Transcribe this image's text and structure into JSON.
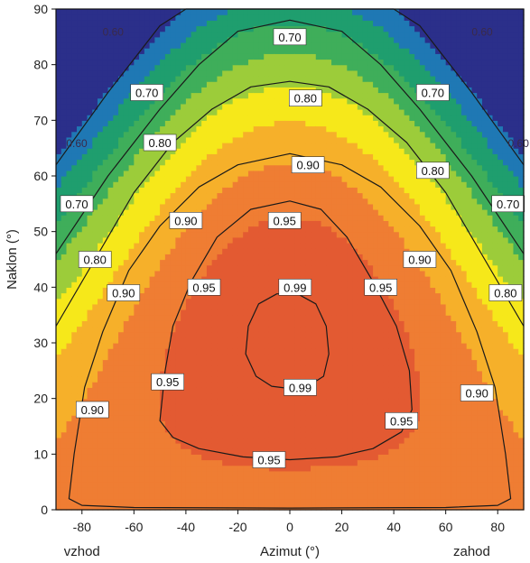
{
  "chart_data": {
    "type": "heatmap",
    "xlabel": "Azimut (°)",
    "ylabel": "Naklon (°)",
    "xlim": [
      -90,
      90
    ],
    "ylim": [
      0,
      90
    ],
    "x_ticks": [
      -80,
      -60,
      -40,
      -20,
      0,
      20,
      40,
      60,
      80
    ],
    "y_ticks": [
      0,
      10,
      20,
      30,
      40,
      50,
      60,
      70,
      80,
      90
    ],
    "x_side_labels": {
      "left": "vzhod",
      "right": "zahod"
    },
    "colors": {
      "levels": [
        0.4,
        0.55,
        0.6,
        0.65,
        0.7,
        0.75,
        0.8,
        0.85,
        0.9,
        0.95,
        1.0
      ],
      "palette": [
        "#2b2f8a",
        "#2b2f8a",
        "#1f78b4",
        "#1f9e6e",
        "#3fae5a",
        "#9ccc3a",
        "#f6e81a",
        "#f6b02a",
        "#ef7d33",
        "#e35a32",
        "#d23a2f"
      ]
    },
    "contour_levels": [
      0.6,
      0.7,
      0.8,
      0.9,
      0.95,
      0.99
    ],
    "contours": [
      {
        "level": 0.6,
        "points": [
          [
            -90,
            62
          ],
          [
            -70,
            75
          ],
          [
            -50,
            87
          ],
          [
            -40,
            90
          ],
          [
            40,
            90
          ],
          [
            50,
            87
          ],
          [
            70,
            75
          ],
          [
            90,
            62
          ]
        ]
      },
      {
        "level": 0.7,
        "points": [
          [
            -90,
            46
          ],
          [
            -70,
            60
          ],
          [
            -50,
            72
          ],
          [
            -35,
            80
          ],
          [
            -20,
            86
          ],
          [
            0,
            88
          ],
          [
            20,
            86
          ],
          [
            35,
            80
          ],
          [
            50,
            72
          ],
          [
            70,
            60
          ],
          [
            90,
            46
          ]
        ]
      },
      {
        "level": 0.8,
        "points": [
          [
            -90,
            33
          ],
          [
            -75,
            45
          ],
          [
            -60,
            57
          ],
          [
            -45,
            66
          ],
          [
            -30,
            72
          ],
          [
            -15,
            76
          ],
          [
            0,
            77
          ],
          [
            15,
            76
          ],
          [
            30,
            72
          ],
          [
            45,
            66
          ],
          [
            60,
            57
          ],
          [
            75,
            45
          ],
          [
            90,
            33
          ]
        ]
      },
      {
        "level": 0.9,
        "points": [
          [
            -85,
            2
          ],
          [
            -83,
            10
          ],
          [
            -79,
            22
          ],
          [
            -72,
            32
          ],
          [
            -62,
            43
          ],
          [
            -50,
            51
          ],
          [
            -35,
            58
          ],
          [
            -20,
            62
          ],
          [
            0,
            64
          ],
          [
            20,
            62
          ],
          [
            35,
            58
          ],
          [
            50,
            51
          ],
          [
            62,
            43
          ],
          [
            72,
            32
          ],
          [
            79,
            22
          ],
          [
            83,
            10
          ],
          [
            85,
            2
          ],
          [
            80,
            0.8
          ],
          [
            60,
            0.4
          ],
          [
            0,
            0.3
          ],
          [
            -60,
            0.4
          ],
          [
            -80,
            0.8
          ]
        ]
      },
      {
        "level": 0.95,
        "points": [
          [
            -50,
            16
          ],
          [
            -48,
            25
          ],
          [
            -45,
            33
          ],
          [
            -38,
            41
          ],
          [
            -28,
            49
          ],
          [
            -15,
            54
          ],
          [
            0,
            55.5
          ],
          [
            12,
            54
          ],
          [
            22,
            49
          ],
          [
            32,
            41
          ],
          [
            41,
            33
          ],
          [
            46,
            25
          ],
          [
            47,
            18
          ],
          [
            43,
            14
          ],
          [
            32,
            11
          ],
          [
            18,
            9.5
          ],
          [
            0,
            9
          ],
          [
            -18,
            9.5
          ],
          [
            -35,
            11
          ],
          [
            -45,
            13
          ]
        ]
      },
      {
        "level": 0.99,
        "points": [
          [
            -17,
            28
          ],
          [
            -16,
            33
          ],
          [
            -12,
            37
          ],
          [
            -5,
            38.8
          ],
          [
            3,
            38.8
          ],
          [
            10,
            37
          ],
          [
            14,
            33
          ],
          [
            15,
            28
          ],
          [
            13,
            24
          ],
          [
            7,
            22.2
          ],
          [
            0,
            21.8
          ],
          [
            -7,
            22.2
          ],
          [
            -13,
            24
          ]
        ]
      }
    ],
    "contour_labels": [
      {
        "text": "0.60",
        "x": -68,
        "y": 86,
        "faint": true
      },
      {
        "text": "0.60",
        "x": 74,
        "y": 86,
        "faint": true
      },
      {
        "text": "0.60",
        "x": -82,
        "y": 66,
        "faint": true
      },
      {
        "text": "0.60",
        "x": 88,
        "y": 66,
        "faint": true
      },
      {
        "text": "0.70",
        "x": 0,
        "y": 85,
        "faint": false
      },
      {
        "text": "0.70",
        "x": -55,
        "y": 75,
        "faint": false
      },
      {
        "text": "0.70",
        "x": 55,
        "y": 75,
        "faint": false
      },
      {
        "text": "0.70",
        "x": -82,
        "y": 55,
        "faint": false
      },
      {
        "text": "0.70",
        "x": 84,
        "y": 55,
        "faint": false
      },
      {
        "text": "0.80",
        "x": 6,
        "y": 74,
        "faint": false
      },
      {
        "text": "0.80",
        "x": -50,
        "y": 66,
        "faint": false
      },
      {
        "text": "0.80",
        "x": 55,
        "y": 61,
        "faint": false
      },
      {
        "text": "0.80",
        "x": -75,
        "y": 45,
        "faint": false
      },
      {
        "text": "0.80",
        "x": 83,
        "y": 39,
        "faint": false
      },
      {
        "text": "0.90",
        "x": 7,
        "y": 62,
        "faint": false
      },
      {
        "text": "0.90",
        "x": -40,
        "y": 52,
        "faint": false
      },
      {
        "text": "0.90",
        "x": 50,
        "y": 45,
        "faint": false
      },
      {
        "text": "0.90",
        "x": -64,
        "y": 39,
        "faint": false
      },
      {
        "text": "0.90",
        "x": 72,
        "y": 21,
        "faint": false
      },
      {
        "text": "0.90",
        "x": -76,
        "y": 18,
        "faint": false
      },
      {
        "text": "0.95",
        "x": -2,
        "y": 52,
        "faint": false
      },
      {
        "text": "0.95",
        "x": -33,
        "y": 40,
        "faint": false
      },
      {
        "text": "0.95",
        "x": 35,
        "y": 40,
        "faint": false
      },
      {
        "text": "0.95",
        "x": -47,
        "y": 23,
        "faint": false
      },
      {
        "text": "0.95",
        "x": 43,
        "y": 16,
        "faint": false
      },
      {
        "text": "0.95",
        "x": -8,
        "y": 9,
        "faint": false
      },
      {
        "text": "0.99",
        "x": 2,
        "y": 40,
        "faint": false
      },
      {
        "text": "0.99",
        "x": 4,
        "y": 22,
        "faint": false
      }
    ],
    "grid": false,
    "legend": "none"
  }
}
